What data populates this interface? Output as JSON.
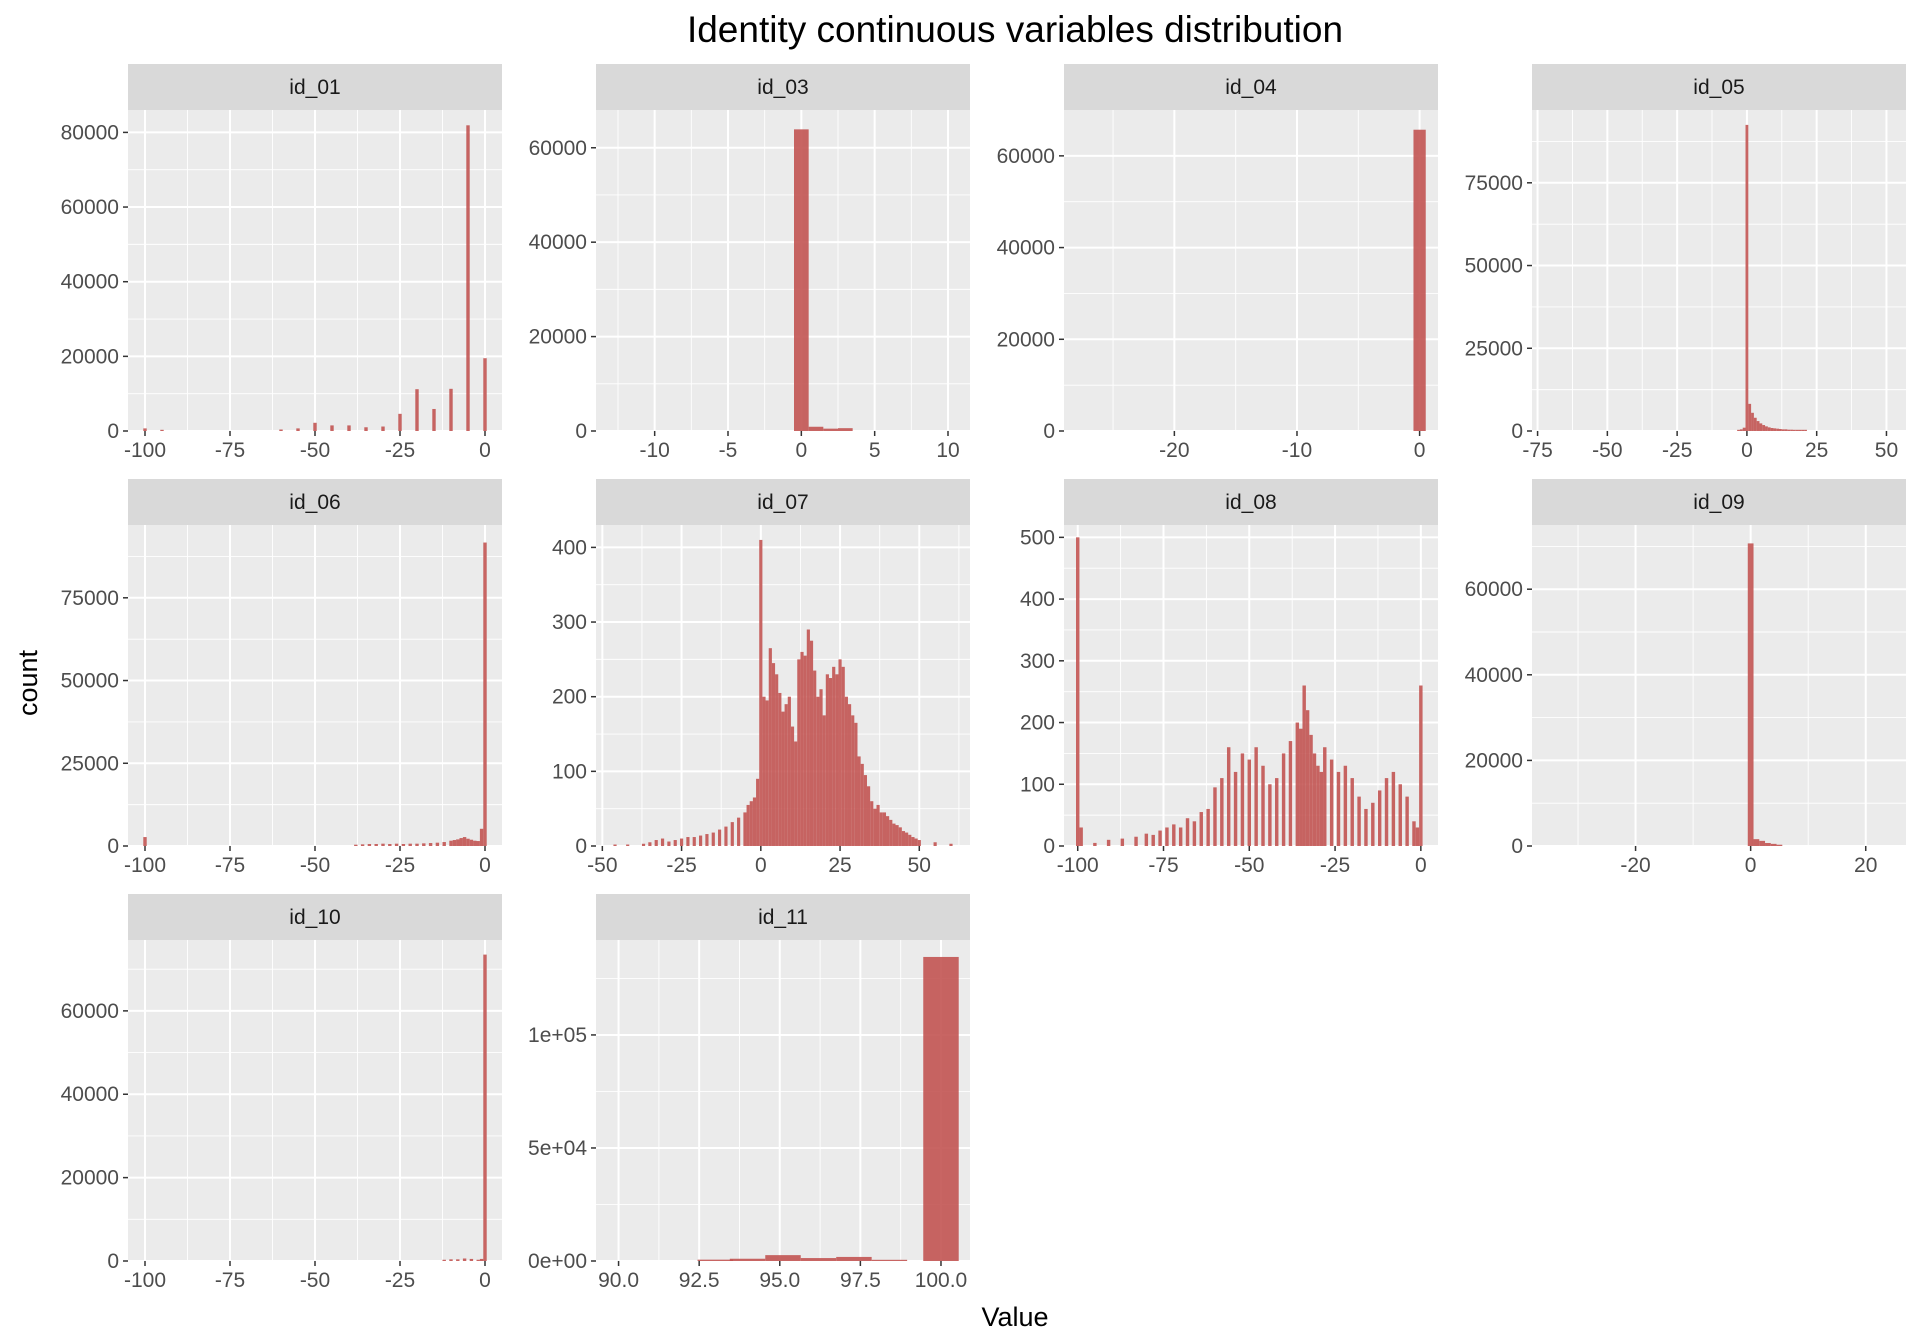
{
  "title": "Identity continuous variables distribution",
  "xlabel": "Value",
  "ylabel": "count",
  "colors": {
    "bar": "#c0504d",
    "panel_bg": "#ebebeb",
    "strip_bg": "#d9d9d9",
    "grid": "#ffffff",
    "tick_text": "#4d4d4d"
  },
  "chart_data": [
    {
      "type": "bar",
      "facet": "id_01",
      "xlim": [
        -105,
        5
      ],
      "ylim": [
        0,
        86000
      ],
      "xticks": [
        -100,
        -75,
        -50,
        -25,
        0
      ],
      "xtick_labels": [
        "-100",
        "-75",
        "-50",
        "-25",
        "0"
      ],
      "yticks": [
        0,
        20000,
        40000,
        60000,
        80000
      ],
      "ytick_labels": [
        "0",
        "20000",
        "40000",
        "60000",
        "80000"
      ],
      "bin_width": 1,
      "x": [
        -100,
        -95,
        -60,
        -55,
        -50,
        -45,
        -40,
        -35,
        -30,
        -25,
        -20,
        -15,
        -10,
        -5,
        0
      ],
      "values": [
        700,
        300,
        400,
        700,
        2200,
        1500,
        1500,
        1000,
        1200,
        4600,
        11200,
        5900,
        11300,
        81900,
        19500
      ]
    },
    {
      "type": "bar",
      "facet": "id_03",
      "xlim": [
        -14,
        11.5
      ],
      "ylim": [
        0,
        68000
      ],
      "xticks": [
        -10,
        -5,
        0,
        5,
        10
      ],
      "xtick_labels": [
        "-10",
        "-5",
        "0",
        "5",
        "10"
      ],
      "yticks": [
        0,
        20000,
        40000,
        60000
      ],
      "ytick_labels": [
        "0",
        "20000",
        "40000",
        "60000"
      ],
      "bin_width": 1,
      "x": [
        0,
        1,
        2,
        3
      ],
      "values": [
        63900,
        900,
        500,
        600
      ]
    },
    {
      "type": "bar",
      "facet": "id_04",
      "xlim": [
        -29,
        1.5
      ],
      "ylim": [
        0,
        70000
      ],
      "xticks": [
        -20,
        -10,
        0
      ],
      "xtick_labels": [
        "-20",
        "-10",
        "0"
      ],
      "yticks": [
        0,
        20000,
        40000,
        60000
      ],
      "ytick_labels": [
        "0",
        "20000",
        "40000",
        "60000"
      ],
      "bin_width": 1,
      "x": [
        0
      ],
      "values": [
        65700
      ]
    },
    {
      "type": "bar",
      "facet": "id_05",
      "xlim": [
        -77,
        57
      ],
      "ylim": [
        0,
        97000
      ],
      "xticks": [
        -75,
        -50,
        -25,
        0,
        25,
        50
      ],
      "xtick_labels": [
        "-75",
        "-50",
        "-25",
        "0",
        "25",
        "50"
      ],
      "yticks": [
        0,
        25000,
        50000,
        75000
      ],
      "ytick_labels": [
        "0",
        "25000",
        "50000",
        "75000"
      ],
      "bin_width": 1,
      "x": [
        -3,
        -2,
        -1,
        0,
        1,
        2,
        3,
        4,
        5,
        6,
        7,
        8,
        9,
        10,
        11,
        12,
        13,
        14,
        15,
        16,
        17,
        18,
        19,
        20,
        21
      ],
      "values": [
        300,
        500,
        1000,
        92500,
        8200,
        5500,
        4000,
        3000,
        2300,
        1800,
        1400,
        1100,
        900,
        800,
        700,
        600,
        500,
        500,
        400,
        400,
        300,
        300,
        300,
        250,
        200
      ]
    },
    {
      "type": "bar",
      "facet": "id_06",
      "xlim": [
        -105,
        5
      ],
      "ylim": [
        0,
        97000
      ],
      "xticks": [
        -100,
        -75,
        -50,
        -25,
        0
      ],
      "xtick_labels": [
        "-100",
        "-75",
        "-50",
        "-25",
        "0"
      ],
      "yticks": [
        0,
        25000,
        50000,
        75000
      ],
      "ytick_labels": [
        "0",
        "25000",
        "50000",
        "75000"
      ],
      "bin_width": 1,
      "x": [
        -100,
        -38,
        -36,
        -34,
        -32,
        -30,
        -28,
        -26,
        -24,
        -22,
        -20,
        -18,
        -16,
        -14,
        -12,
        -10,
        -9,
        -8,
        -7,
        -6,
        -5,
        -4,
        -3,
        -2,
        -1,
        0
      ],
      "values": [
        2700,
        400,
        500,
        600,
        600,
        700,
        600,
        700,
        600,
        700,
        700,
        800,
        900,
        1000,
        1200,
        1600,
        1800,
        2000,
        2400,
        2700,
        2200,
        1900,
        1600,
        1500,
        5200,
        91700
      ]
    },
    {
      "type": "bar",
      "facet": "id_07",
      "xlim": [
        -52,
        66
      ],
      "ylim": [
        0,
        430
      ],
      "xticks": [
        -50,
        -25,
        0,
        25,
        50
      ],
      "xtick_labels": [
        "-50",
        "-25",
        "0",
        "25",
        "50"
      ],
      "yticks": [
        0,
        100,
        200,
        300,
        400
      ],
      "ytick_labels": [
        "0",
        "100",
        "200",
        "300",
        "400"
      ],
      "bin_width": 1,
      "x": [
        -46,
        -42,
        -37,
        -35,
        -33,
        -31,
        -29,
        -27,
        -25,
        -23,
        -21,
        -19,
        -17,
        -15,
        -13,
        -11,
        -9,
        -7,
        -5,
        -4,
        -3,
        -2,
        -1,
        0,
        1,
        2,
        3,
        4,
        5,
        6,
        7,
        8,
        9,
        10,
        11,
        12,
        13,
        14,
        15,
        16,
        17,
        18,
        19,
        20,
        21,
        22,
        23,
        24,
        25,
        26,
        27,
        28,
        29,
        30,
        31,
        32,
        33,
        34,
        35,
        36,
        37,
        38,
        39,
        40,
        41,
        42,
        43,
        44,
        45,
        46,
        47,
        48,
        49,
        50,
        55,
        60
      ],
      "values": [
        2,
        2,
        3,
        5,
        8,
        10,
        6,
        8,
        10,
        12,
        12,
        14,
        16,
        18,
        22,
        26,
        32,
        38,
        45,
        55,
        60,
        65,
        90,
        410,
        200,
        195,
        265,
        245,
        230,
        205,
        180,
        190,
        200,
        160,
        140,
        250,
        260,
        255,
        290,
        275,
        235,
        200,
        210,
        175,
        230,
        225,
        240,
        230,
        250,
        240,
        200,
        190,
        175,
        165,
        120,
        110,
        95,
        80,
        60,
        50,
        55,
        45,
        45,
        40,
        35,
        30,
        28,
        25,
        20,
        18,
        15,
        12,
        10,
        8,
        5,
        3
      ]
    },
    {
      "type": "bar",
      "facet": "id_08",
      "xlim": [
        -104,
        5
      ],
      "ylim": [
        0,
        520
      ],
      "xticks": [
        -100,
        -75,
        -50,
        -25,
        0
      ],
      "xtick_labels": [
        "-100",
        "-75",
        "-50",
        "-25",
        "0"
      ],
      "yticks": [
        0,
        100,
        200,
        300,
        400,
        500
      ],
      "ytick_labels": [
        "0",
        "100",
        "200",
        "300",
        "400",
        "500"
      ],
      "bin_width": 1,
      "x": [
        -100,
        -99,
        -95,
        -91,
        -87,
        -83,
        -80,
        -78,
        -76,
        -74,
        -72,
        -70,
        -68,
        -66,
        -64,
        -62,
        -60,
        -58,
        -56,
        -54,
        -52,
        -50,
        -48,
        -46,
        -44,
        -42,
        -40,
        -38,
        -36,
        -35,
        -34,
        -33,
        -32,
        -31,
        -30,
        -29,
        -28,
        -26,
        -24,
        -22,
        -20,
        -18,
        -16,
        -14,
        -12,
        -10,
        -8,
        -6,
        -4,
        -2,
        -1,
        0
      ],
      "values": [
        500,
        30,
        5,
        10,
        12,
        15,
        20,
        18,
        25,
        30,
        35,
        30,
        45,
        40,
        55,
        60,
        95,
        110,
        160,
        120,
        150,
        140,
        160,
        130,
        100,
        110,
        150,
        170,
        200,
        190,
        260,
        220,
        180,
        150,
        130,
        120,
        160,
        140,
        120,
        130,
        110,
        80,
        60,
        70,
        90,
        110,
        120,
        100,
        80,
        40,
        30,
        260
      ]
    },
    {
      "type": "bar",
      "facet": "id_09",
      "xlim": [
        -38,
        27
      ],
      "ylim": [
        0,
        75000
      ],
      "xticks": [
        -20,
        0,
        20
      ],
      "xtick_labels": [
        "-20",
        "0",
        "20"
      ],
      "yticks": [
        0,
        20000,
        40000,
        60000
      ],
      "ytick_labels": [
        "0",
        "20000",
        "40000",
        "60000"
      ],
      "bin_width": 1,
      "x": [
        0,
        1,
        2,
        3,
        4,
        5
      ],
      "values": [
        70700,
        1600,
        1200,
        700,
        500,
        300
      ]
    },
    {
      "type": "bar",
      "facet": "id_10",
      "xlim": [
        -105,
        5
      ],
      "ylim": [
        0,
        77000
      ],
      "xticks": [
        -100,
        -75,
        -50,
        -25,
        0
      ],
      "xtick_labels": [
        "-100",
        "-75",
        "-50",
        "-25",
        "0"
      ],
      "yticks": [
        0,
        20000,
        40000,
        60000
      ],
      "ytick_labels": [
        "0",
        "20000",
        "40000",
        "60000"
      ],
      "bin_width": 1,
      "x": [
        -12,
        -10,
        -8,
        -6,
        -4,
        -2,
        -1,
        0
      ],
      "values": [
        300,
        400,
        400,
        600,
        500,
        300,
        500,
        73500
      ]
    },
    {
      "type": "bar",
      "facet": "id_11",
      "xlim": [
        89.3,
        100.9
      ],
      "ylim": [
        0,
        142000
      ],
      "xticks": [
        90,
        92.5,
        95,
        97.5,
        100
      ],
      "xtick_labels": [
        "90.0",
        "92.5",
        "95.0",
        "97.5",
        "100.0"
      ],
      "yticks": [
        0,
        50000,
        100000
      ],
      "ytick_labels": [
        "0e+00",
        "5e+04",
        "1e+05"
      ],
      "bin_width": 1.1,
      "x": [
        93.0,
        94.0,
        95.1,
        96.2,
        97.3,
        98.4,
        100.0
      ],
      "values": [
        600,
        1000,
        2600,
        1300,
        1800,
        400,
        134500
      ]
    }
  ]
}
